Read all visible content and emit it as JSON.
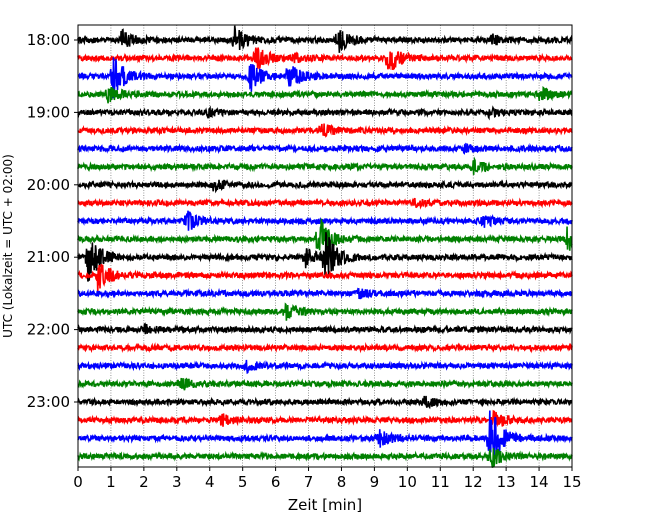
{
  "chart_data": {
    "type": "line",
    "title": "",
    "xlabel": "Zeit  [min]",
    "ylabel": "UTC (Lokalzeit = UTC + 02:00)",
    "xlim": [
      0,
      15
    ],
    "x_ticks": [
      0,
      1,
      2,
      3,
      4,
      5,
      6,
      7,
      8,
      9,
      10,
      11,
      12,
      13,
      14,
      15
    ],
    "x_tick_labels": [
      "0",
      "1",
      "2",
      "3",
      "4",
      "5",
      "6",
      "7",
      "8",
      "9",
      "10",
      "11",
      "12",
      "13",
      "14",
      "15"
    ],
    "y_tick_labels": [
      "18:00",
      "19:00",
      "20:00",
      "21:00",
      "22:00",
      "23:00"
    ],
    "grid_x": true,
    "trace_colors": [
      "#000000",
      "#ff0000",
      "#0000ff",
      "#008000"
    ],
    "traces": [
      {
        "start": "18:00",
        "events": [
          {
            "t": 1.3,
            "a": 10
          },
          {
            "t": 4.75,
            "a": 14
          },
          {
            "t": 7.9,
            "a": 12
          },
          {
            "t": 12.5,
            "a": 6
          }
        ]
      },
      {
        "start": "18:15",
        "events": [
          {
            "t": 5.4,
            "a": 12
          },
          {
            "t": 6.5,
            "a": 5
          },
          {
            "t": 9.4,
            "a": 16
          }
        ]
      },
      {
        "start": "18:30",
        "events": [
          {
            "t": 1.05,
            "a": 22
          },
          {
            "t": 5.2,
            "a": 16
          },
          {
            "t": 6.4,
            "a": 14
          }
        ]
      },
      {
        "start": "18:45",
        "events": [
          {
            "t": 0.9,
            "a": 8
          },
          {
            "t": 14.0,
            "a": 7
          }
        ]
      },
      {
        "start": "19:00",
        "events": [
          {
            "t": 3.9,
            "a": 4
          },
          {
            "t": 12.4,
            "a": 4
          }
        ]
      },
      {
        "start": "19:15",
        "events": [
          {
            "t": 7.4,
            "a": 6
          }
        ]
      },
      {
        "start": "19:30",
        "events": [
          {
            "t": 11.7,
            "a": 4
          }
        ]
      },
      {
        "start": "19:45",
        "events": [
          {
            "t": 12.0,
            "a": 6
          }
        ]
      },
      {
        "start": "20:00",
        "events": [
          {
            "t": 4.1,
            "a": 5
          }
        ]
      },
      {
        "start": "20:15",
        "events": [
          {
            "t": 10.2,
            "a": 4
          }
        ]
      },
      {
        "start": "20:30",
        "events": [
          {
            "t": 3.3,
            "a": 10
          },
          {
            "t": 12.3,
            "a": 5
          }
        ]
      },
      {
        "start": "20:45",
        "events": [
          {
            "t": 7.3,
            "a": 24
          },
          {
            "t": 14.85,
            "a": 12
          }
        ]
      },
      {
        "start": "21:00",
        "events": [
          {
            "t": 0.3,
            "a": 26
          },
          {
            "t": 6.9,
            "a": 10
          },
          {
            "t": 7.5,
            "a": 26
          }
        ]
      },
      {
        "start": "21:15",
        "events": [
          {
            "t": 0.6,
            "a": 16
          }
        ]
      },
      {
        "start": "21:30",
        "events": [
          {
            "t": 8.5,
            "a": 4
          }
        ]
      },
      {
        "start": "21:45",
        "events": [
          {
            "t": 6.3,
            "a": 8
          }
        ]
      },
      {
        "start": "22:00",
        "events": [
          {
            "t": 2.0,
            "a": 4
          }
        ]
      },
      {
        "start": "22:15",
        "events": []
      },
      {
        "start": "22:30",
        "events": [
          {
            "t": 5.1,
            "a": 5
          }
        ]
      },
      {
        "start": "22:45",
        "events": [
          {
            "t": 3.1,
            "a": 6
          }
        ]
      },
      {
        "start": "23:00",
        "events": [
          {
            "t": 10.5,
            "a": 5
          }
        ]
      },
      {
        "start": "23:15",
        "events": [
          {
            "t": 4.3,
            "a": 6
          },
          {
            "t": 12.6,
            "a": 10
          }
        ]
      },
      {
        "start": "23:30",
        "events": [
          {
            "t": 9.1,
            "a": 9
          },
          {
            "t": 12.5,
            "a": 34
          }
        ]
      },
      {
        "start": "23:45",
        "events": [
          {
            "t": 12.5,
            "a": 12
          }
        ]
      }
    ]
  }
}
